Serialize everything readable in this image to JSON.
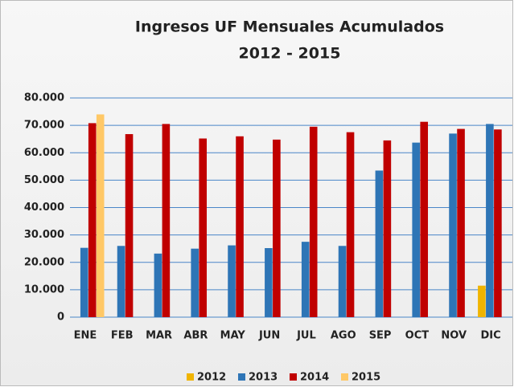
{
  "chart_data": {
    "type": "bar",
    "title": "Ingresos UF Mensuales Acumulados",
    "subtitle": "2012 - 2015",
    "categories": [
      "ENE",
      "FEB",
      "MAR",
      "ABR",
      "MAY",
      "JUN",
      "JUL",
      "AGO",
      "SEP",
      "OCT",
      "NOV",
      "DIC"
    ],
    "series": [
      {
        "name": "2012",
        "color": "#f0b400",
        "values": [
          null,
          null,
          null,
          null,
          null,
          null,
          null,
          null,
          null,
          null,
          null,
          11500
        ]
      },
      {
        "name": "2013",
        "color": "#2e75b6",
        "values": [
          25300,
          26000,
          23200,
          25000,
          26200,
          25200,
          27500,
          26000,
          53500,
          63700,
          67000,
          70500
        ]
      },
      {
        "name": "2014",
        "color": "#c00000",
        "values": [
          70800,
          66800,
          70500,
          65200,
          66000,
          64800,
          69500,
          67500,
          64500,
          71300,
          68700,
          68500
        ]
      },
      {
        "name": "2015",
        "color": "#ffc866",
        "values": [
          74000,
          null,
          null,
          null,
          null,
          null,
          null,
          null,
          null,
          null,
          null,
          null
        ]
      }
    ],
    "ylim": [
      0,
      80000
    ],
    "yticks": [
      0,
      {
        "value": 10000,
        "label": "10.000"
      },
      {
        "value": 20000,
        "label": "20.000"
      },
      {
        "value": 30000,
        "label": "30.000"
      },
      {
        "value": 40000,
        "label": "40.000"
      },
      {
        "value": 50000,
        "label": "50.000"
      },
      {
        "value": 60000,
        "label": "60.000"
      },
      {
        "value": 70000,
        "label": "70.000"
      },
      {
        "value": 80000,
        "label": "80.000"
      }
    ],
    "grid": true,
    "legend": "bottom"
  }
}
